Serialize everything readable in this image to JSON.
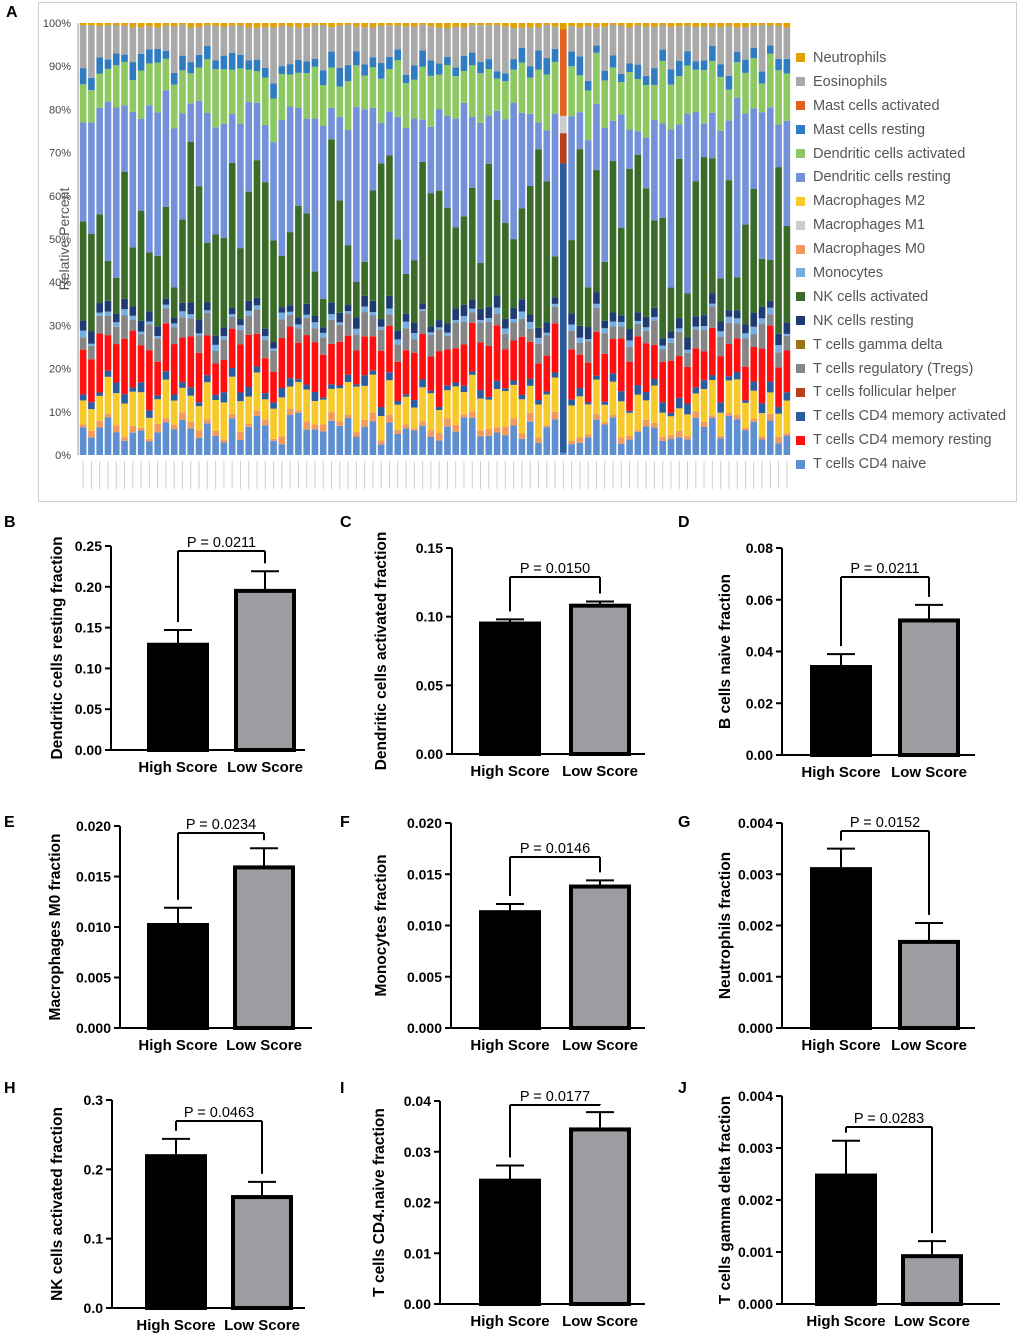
{
  "panel_a": {
    "letter": "A",
    "ylabel": "Relative Percent",
    "yticks": [
      "0%",
      "10%",
      "20%",
      "30%",
      "40%",
      "50%",
      "60%",
      "70%",
      "80%",
      "90%",
      "100%"
    ],
    "legend": [
      {
        "label": "Neutrophils",
        "color": "#E0A000"
      },
      {
        "label": "Eosinophils",
        "color": "#A9A9A9"
      },
      {
        "label": "Mast cells activated",
        "color": "#E0621E"
      },
      {
        "label": "Mast cells resting",
        "color": "#2F7CC1"
      },
      {
        "label": "Dendritic cells activated",
        "color": "#8DC863"
      },
      {
        "label": "Dendritic cells resting",
        "color": "#7291D8"
      },
      {
        "label": "Macrophages M2",
        "color": "#F7C92B"
      },
      {
        "label": "Macrophages M1",
        "color": "#CDCDCD"
      },
      {
        "label": "Macrophages M0",
        "color": "#F19A5D"
      },
      {
        "label": "Monocytes",
        "color": "#76AEE0"
      },
      {
        "label": "NK cells activated",
        "color": "#3B6B28"
      },
      {
        "label": "NK cells resting",
        "color": "#1E3B72"
      },
      {
        "label": "T cells gamma delta",
        "color": "#9C7418"
      },
      {
        "label": "T cells regulatory (Tregs)",
        "color": "#858585"
      },
      {
        "label": "T cells follicular helper",
        "color": "#B5401A"
      },
      {
        "label": "T cells CD4 memory activated",
        "color": "#2B5D9E"
      },
      {
        "label": "T cells CD4 memory resting",
        "color": "#FF0F0F"
      },
      {
        "label": "T cells CD4 naive",
        "color": "#5E8FD1"
      }
    ]
  },
  "chart_data": [
    {
      "id": "B",
      "type": "bar",
      "ylabel": "Dendritic cells resting fraction",
      "categories": [
        "High Score",
        "Low Score"
      ],
      "values": [
        0.129,
        0.195
      ],
      "errors": [
        0.018,
        0.024
      ],
      "ylim": [
        0,
        0.25
      ],
      "yticks": [
        "0.00",
        "0.05",
        "0.10",
        "0.15",
        "0.20",
        "0.25"
      ],
      "pvalue": "P = 0.0211"
    },
    {
      "id": "C",
      "type": "bar",
      "ylabel": "Dendritic cells activated fraction",
      "categories": [
        "High Score",
        "Low Score"
      ],
      "values": [
        0.095,
        0.108
      ],
      "errors": [
        0.003,
        0.003
      ],
      "ylim": [
        0,
        0.15
      ],
      "yticks": [
        "0.00",
        "0.05",
        "0.10",
        "0.15"
      ],
      "pvalue": "P = 0.0150"
    },
    {
      "id": "D",
      "type": "bar",
      "ylabel": "B cells naive fraction",
      "categories": [
        "High Score",
        "Low Score"
      ],
      "values": [
        0.034,
        0.052
      ],
      "errors": [
        0.005,
        0.006
      ],
      "ylim": [
        0,
        0.08
      ],
      "yticks": [
        "0.00",
        "0.02",
        "0.04",
        "0.06",
        "0.08"
      ],
      "pvalue": "P = 0.0211"
    },
    {
      "id": "E",
      "type": "bar",
      "ylabel": "Macrophages M0 fraction",
      "categories": [
        "High Score",
        "Low Score"
      ],
      "values": [
        0.0102,
        0.0159
      ],
      "errors": [
        0.0017,
        0.0019
      ],
      "ylim": [
        0,
        0.02
      ],
      "yticks": [
        "0.000",
        "0.005",
        "0.010",
        "0.015",
        "0.020"
      ],
      "pvalue": "P = 0.0234"
    },
    {
      "id": "F",
      "type": "bar",
      "ylabel": "Monocytes fraction",
      "categories": [
        "High Score",
        "Low Score"
      ],
      "values": [
        0.0113,
        0.0138
      ],
      "errors": [
        0.0008,
        0.0006
      ],
      "ylim": [
        0,
        0.02
      ],
      "yticks": [
        "0.000",
        "0.005",
        "0.010",
        "0.015",
        "0.020"
      ],
      "pvalue": "P = 0.0146"
    },
    {
      "id": "G",
      "type": "bar",
      "ylabel": "Neutrophils fraction",
      "categories": [
        "High Score",
        "Low Score"
      ],
      "values": [
        0.0031,
        0.00168
      ],
      "errors": [
        0.0004,
        0.00037
      ],
      "ylim": [
        0,
        0.004
      ],
      "yticks": [
        "0.000",
        "0.001",
        "0.002",
        "0.003",
        "0.004"
      ],
      "pvalue": "P = 0.0152"
    },
    {
      "id": "H",
      "type": "bar",
      "ylabel": "NK cells activated fraction",
      "categories": [
        "High Score",
        "Low Score"
      ],
      "values": [
        0.219,
        0.16
      ],
      "errors": [
        0.025,
        0.022
      ],
      "ylim": [
        0,
        0.3
      ],
      "yticks": [
        "0.0",
        "0.1",
        "0.2",
        "0.3"
      ],
      "pvalue": "P = 0.0463"
    },
    {
      "id": "I",
      "type": "bar",
      "ylabel": "T cells CD4.naive fraction",
      "categories": [
        "High Score",
        "Low Score"
      ],
      "values": [
        0.0243,
        0.0344
      ],
      "errors": [
        0.003,
        0.0034
      ],
      "ylim": [
        0,
        0.04
      ],
      "yticks": [
        "0.00",
        "0.01",
        "0.02",
        "0.03",
        "0.04"
      ],
      "pvalue": "P = 0.0177"
    },
    {
      "id": "J",
      "type": "bar",
      "ylabel": "T cells gamma delta fraction",
      "categories": [
        "High Score",
        "Low Score"
      ],
      "values": [
        0.00247,
        0.00092
      ],
      "errors": [
        0.00067,
        0.00029
      ],
      "ylim": [
        0,
        0.004
      ],
      "yticks": [
        "0.000",
        "0.001",
        "0.002",
        "0.003",
        "0.004"
      ],
      "pvalue": "P = 0.0283"
    }
  ]
}
